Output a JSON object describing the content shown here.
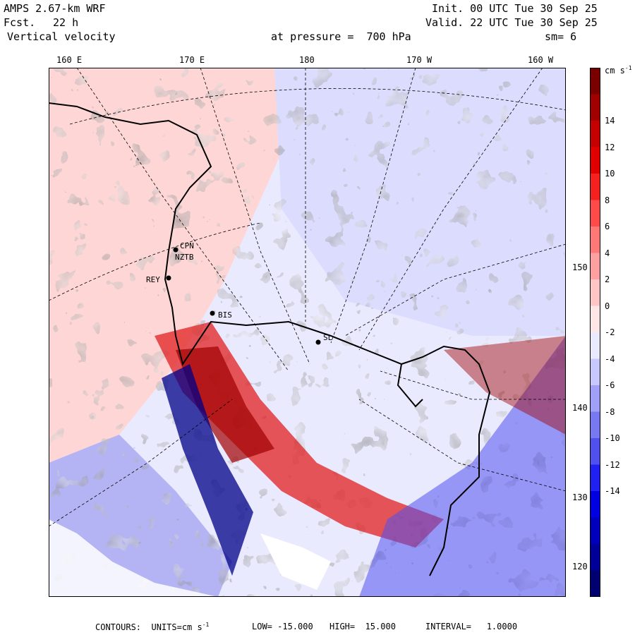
{
  "header": {
    "model": "AMPS 2.67-km WRF",
    "fcst_label": "Fcst.",
    "fcst_value": "22 h",
    "field": "Vertical velocity",
    "init": "Init. 00 UTC Tue 30 Sep 25",
    "valid": "Valid. 22 UTC Tue 30 Sep 25",
    "pressure": "at pressure =  700 hPa",
    "smooth": "sm= 6"
  },
  "longitude_labels": [
    "160 E",
    "170 E",
    "180",
    "170 W",
    "160 W"
  ],
  "latitude_labels": [
    "150 W",
    "140 W",
    "130 W",
    "120 W"
  ],
  "colorbar": {
    "unit": "cm s",
    "unit_exp": "-1",
    "ticks": [
      "14",
      "12",
      "10",
      "8",
      "6",
      "4",
      "2",
      "0",
      "-2",
      "-4",
      "-6",
      "-8",
      "-10",
      "-12",
      "-14"
    ],
    "colors": [
      "#7a0000",
      "#a00000",
      "#c40000",
      "#e00000",
      "#f52020",
      "#ff4a4a",
      "#ff7878",
      "#ffa0a0",
      "#ffc6c6",
      "#ffe6e6",
      "#eaeaff",
      "#c8c8ff",
      "#a0a0f8",
      "#7878f0",
      "#5050ee",
      "#2020f0",
      "#0000e0",
      "#0000bc",
      "#000098",
      "#000070"
    ]
  },
  "stations": [
    "CPN",
    "NZTB",
    "REY",
    "BIS",
    "SL"
  ],
  "footer": {
    "contours": "CONTOURS:  UNITS=cm s",
    "unit_exp": "-1",
    "low": "LOW= -15.000",
    "high": "HIGH=  15.000",
    "interval": "INTERVAL=   1.0000"
  }
}
